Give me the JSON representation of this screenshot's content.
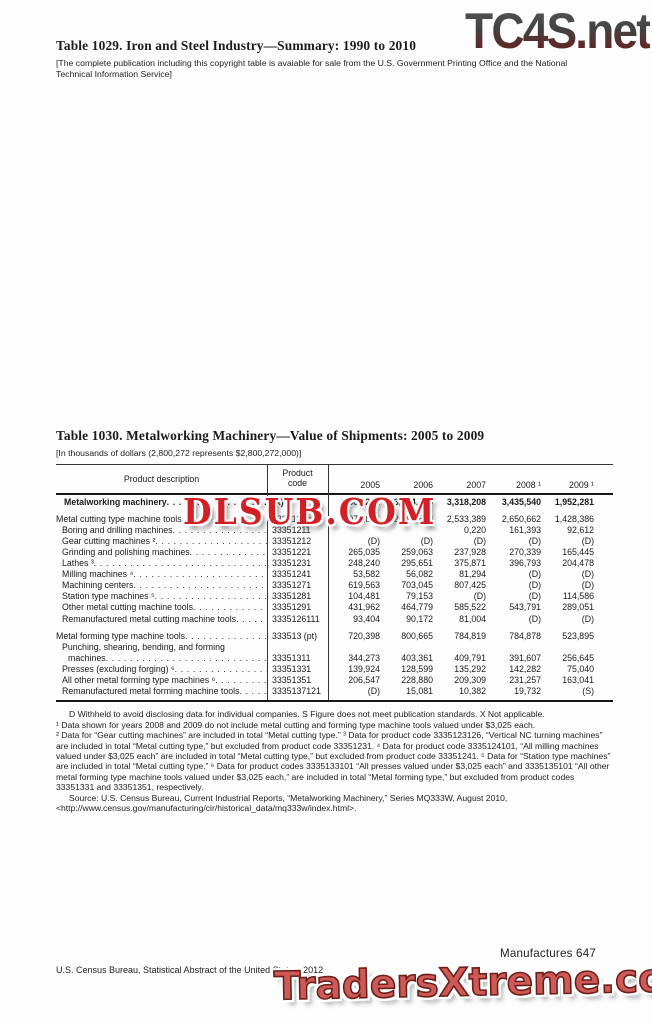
{
  "watermarks": {
    "top": "TC4S.net",
    "middle": "DLSUB.COM",
    "bottom": "TradersXtreme.com"
  },
  "table1029": {
    "title": "Table 1029. Iron and Steel Industry—Summary: 1990 to 2010",
    "note": "[The complete publication including this copyright table is avaiable for sale from the U.S. Government Printing Office and the National Technical Information Service]"
  },
  "table1030": {
    "title": "Table 1030. Metalworking Machinery—Value of Shipments: 2005 to 2009",
    "note": "[In thousands of dollars (2,800,272 represents $2,800,272,000)]",
    "columns": {
      "description": "Product description",
      "code": "Product\ncode",
      "years": [
        "2005",
        "2006",
        "2007",
        "2008 ¹",
        "2009 ¹"
      ]
    },
    "rows": [
      {
        "type": "total",
        "label": "Metalworking machinery",
        "code": "(X)",
        "leader": true,
        "values": [
          "2,800,272",
          "3,094,478",
          "3,318,208",
          "3,435,540",
          "1,952,281"
        ]
      },
      {
        "type": "spacer"
      },
      {
        "type": "group",
        "label": "Metal cutting type machine tools",
        "code": "333512 (pt)",
        "leader": true,
        "values": [
          "2,079,874",
          "2,293,813",
          "2,533,389",
          "2,650,662",
          "1,428,386"
        ]
      },
      {
        "type": "item",
        "label": "Boring and drilling machines",
        "code": "33351211",
        "leader": true,
        "values": [
          "",
          "",
          "0,220",
          "161,393",
          "92,612"
        ]
      },
      {
        "type": "item",
        "label": "Gear cutting machines ²",
        "code": "33351212",
        "leader": true,
        "values": [
          "(D)",
          "(D)",
          "(D)",
          "(D)",
          "(D)"
        ]
      },
      {
        "type": "item",
        "label": "Grinding and polishing machines",
        "code": "33351221",
        "leader": true,
        "values": [
          "265,035",
          "259,063",
          "237,928",
          "270,339",
          "165,445"
        ]
      },
      {
        "type": "item",
        "label": "Lathes ³",
        "code": "33351231",
        "leader": true,
        "values": [
          "248,240",
          "295,651",
          "375,871",
          "396,793",
          "204,478"
        ]
      },
      {
        "type": "item",
        "label": "Milling machines ⁴",
        "code": "33351241",
        "leader": true,
        "values": [
          "53,582",
          "56,082",
          "81,294",
          "(D)",
          "(D)"
        ]
      },
      {
        "type": "item",
        "label": "Machining centers",
        "code": "33351271",
        "leader": true,
        "values": [
          "619,563",
          "703,045",
          "807,425",
          "(D)",
          "(D)"
        ]
      },
      {
        "type": "item",
        "label": "Station type machines ⁵",
        "code": "33351281",
        "leader": true,
        "values": [
          "104,481",
          "79,153",
          "(D)",
          "(D)",
          "114,586"
        ]
      },
      {
        "type": "item",
        "label": "Other metal cutting machine tools",
        "code": "33351291",
        "leader": true,
        "values": [
          "431,962",
          "464,779",
          "585,522",
          "543,791",
          "289,051"
        ]
      },
      {
        "type": "item",
        "label": "Remanufactured metal cutting machine tools",
        "code": "3335126111",
        "leader": true,
        "values": [
          "93,404",
          "90,172",
          "81,004",
          "(D)",
          "(D)"
        ]
      },
      {
        "type": "spacer"
      },
      {
        "type": "group",
        "label": "Metal forming type machine tools",
        "code": "333513 (pt)",
        "leader": true,
        "values": [
          "720,398",
          "800,665",
          "784,819",
          "784,878",
          "523,895"
        ]
      },
      {
        "type": "item",
        "label": "Punching, shearing, bending, and forming",
        "code": "",
        "leader": false,
        "values": [
          "",
          "",
          "",
          "",
          ""
        ]
      },
      {
        "type": "cont",
        "label": "machines",
        "code": "33351311",
        "leader": true,
        "values": [
          "344,273",
          "403,361",
          "409,791",
          "391,607",
          "256,645"
        ]
      },
      {
        "type": "item",
        "label": "Presses (excluding forging) ⁶",
        "code": "33351331",
        "leader": true,
        "values": [
          "139,924",
          "128,599",
          "135,292",
          "142,282",
          "75,040"
        ]
      },
      {
        "type": "item",
        "label": "All other metal forming type machines ⁶",
        "code": "33351351",
        "leader": true,
        "values": [
          "206,547",
          "228,880",
          "209,309",
          "231,257",
          "163,041"
        ]
      },
      {
        "type": "item",
        "label": "Remanufactured metal forming machine tools",
        "code": "3335137121",
        "leader": true,
        "values": [
          "(D)",
          "15,081",
          "10,382",
          "19,732",
          "(S)"
        ]
      }
    ]
  },
  "footnotes": [
    {
      "indent": true,
      "text": "D Withheld to avoid disclosing data for individual companies. S Figure does not meet publication standards. X Not applicable."
    },
    {
      "indent": false,
      "text": "¹ Data shown for years 2008 and 2009 do not include metal cutting and forming type machine tools valued under $3,025 each."
    },
    {
      "indent": false,
      "text": "² Data for “Gear cutting machines” are included in total “Metal cutting type.” ³ Data for product code 3335123126, “Vertical NC turning machines” are included in total “Metal cutting type,” but excluded from product code 33351231. ⁴ Data for product code 3335124101, “All milling machines valued under $3,025 each” are included in total “Metal cutting type,” but excluded from product code 33351241. ⁵ Data for “Station type machines” are included in total “Metal cutting type.” ⁶ Data for product codes 3335133101 “All presses valued under $3,025 each” and 3335135101 “All other metal forming type machine tools valued under $3,025 each,” are included in total “Metal forming type,” but excluded from product codes 33351331 and 33351351, respectively."
    },
    {
      "indent": true,
      "text": "Source: U.S. Census Bureau, Current Industrial Reports, “Metalworking Machinery,”  Series MQ333W, August 2010, <http://www.census.gov/manufacturing/cir/historical_data/mq333w/index.html>."
    }
  ],
  "footer": {
    "page_label": "Manufactures  647",
    "source": "U.S. Census Bureau, Statistical Abstract of the United States: 2012"
  }
}
